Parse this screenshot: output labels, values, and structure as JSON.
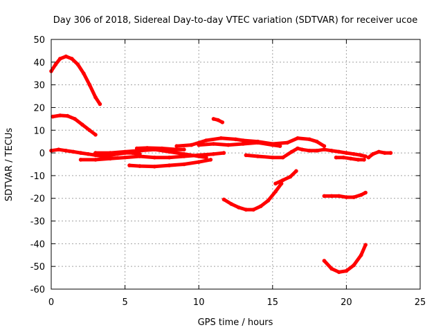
{
  "chart_data": {
    "type": "scatter",
    "title": "Day 306 of 2018, Sidereal Day-to-day VTEC variation (SDTVAR) for receiver ucoe",
    "xlabel": "GPS time / hours",
    "ylabel": "SDTVAR / TECUs",
    "xlim": [
      0,
      25
    ],
    "ylim": [
      -60,
      50
    ],
    "xticks": [
      0,
      5,
      10,
      15,
      20,
      25
    ],
    "yticks": [
      -60,
      -50,
      -40,
      -30,
      -20,
      -10,
      0,
      10,
      20,
      30,
      40,
      50
    ],
    "grid": true,
    "color": "#ff0000",
    "series": [
      {
        "name": "arc-1",
        "points": [
          [
            0.0,
            36
          ],
          [
            0.3,
            39
          ],
          [
            0.6,
            41.5
          ],
          [
            1.0,
            42.5
          ],
          [
            1.4,
            41.5
          ],
          [
            1.8,
            39
          ],
          [
            2.2,
            35
          ],
          [
            2.6,
            30
          ],
          [
            3.0,
            24.5
          ],
          [
            3.3,
            21.5
          ]
        ]
      },
      {
        "name": "arc-2",
        "points": [
          [
            0.1,
            16
          ],
          [
            0.6,
            16.5
          ],
          [
            1.1,
            16.3
          ],
          [
            1.6,
            15
          ],
          [
            2.1,
            12.5
          ],
          [
            2.6,
            10
          ],
          [
            3.0,
            8
          ]
        ]
      },
      {
        "name": "arc-3",
        "points": [
          [
            0.0,
            1
          ],
          [
            0.5,
            1.5
          ],
          [
            1.0,
            1
          ],
          [
            1.5,
            0.5
          ],
          [
            2.0,
            0
          ],
          [
            2.5,
            -0.5
          ],
          [
            3.0,
            -1
          ],
          [
            3.5,
            -1.5
          ],
          [
            4.0,
            -1
          ],
          [
            4.5,
            -0.5
          ],
          [
            5.0,
            0
          ],
          [
            5.5,
            0
          ],
          [
            6.0,
            -0.5
          ]
        ]
      },
      {
        "name": "arc-4",
        "points": [
          [
            2.0,
            -3
          ],
          [
            3.0,
            -3
          ],
          [
            4.0,
            -2.5
          ],
          [
            5.0,
            -2
          ],
          [
            6.0,
            -1.5
          ],
          [
            7.0,
            -2
          ],
          [
            8.0,
            -2
          ],
          [
            9.0,
            -1.5
          ],
          [
            10.0,
            -1
          ],
          [
            11.0,
            -0.5
          ],
          [
            11.7,
            0
          ]
        ]
      },
      {
        "name": "arc-5",
        "points": [
          [
            3.0,
            0
          ],
          [
            4.0,
            0
          ],
          [
            5.0,
            0.5
          ],
          [
            6.0,
            1
          ],
          [
            7.0,
            1.5
          ],
          [
            8.0,
            0.5
          ],
          [
            9.0,
            -0.5
          ],
          [
            10.0,
            -1.5
          ],
          [
            10.5,
            -2
          ]
        ]
      },
      {
        "name": "arc-6",
        "points": [
          [
            5.3,
            -5.5
          ],
          [
            6.0,
            -5.8
          ],
          [
            7.0,
            -6
          ],
          [
            8.0,
            -5.5
          ],
          [
            9.0,
            -5
          ],
          [
            10.0,
            -4
          ],
          [
            10.8,
            -3
          ]
        ]
      },
      {
        "name": "arc-7",
        "points": [
          [
            5.8,
            2
          ],
          [
            6.5,
            2.2
          ],
          [
            7.5,
            2
          ],
          [
            8.5,
            1.5
          ],
          [
            9.0,
            1.5
          ]
        ]
      },
      {
        "name": "arc-8",
        "points": [
          [
            8.5,
            3
          ],
          [
            9.5,
            3.5
          ],
          [
            10.5,
            5.5
          ],
          [
            11.5,
            6.5
          ],
          [
            12.5,
            6
          ],
          [
            13.0,
            5.5
          ],
          [
            14.0,
            5
          ],
          [
            15.0,
            4
          ],
          [
            16.0,
            4.5
          ],
          [
            16.7,
            6.5
          ],
          [
            17.5,
            6
          ],
          [
            18.0,
            5
          ],
          [
            18.5,
            3
          ]
        ]
      },
      {
        "name": "arc-9",
        "points": [
          [
            10.0,
            3.5
          ],
          [
            11.0,
            4
          ],
          [
            12.0,
            3.5
          ],
          [
            13.0,
            4
          ],
          [
            14.0,
            4.5
          ],
          [
            15.0,
            3.5
          ],
          [
            15.5,
            3
          ]
        ]
      },
      {
        "name": "arc-10",
        "points": [
          [
            11.0,
            15
          ],
          [
            11.3,
            14.5
          ],
          [
            11.6,
            13.5
          ]
        ]
      },
      {
        "name": "arc-11",
        "points": [
          [
            13.2,
            -1
          ],
          [
            14.0,
            -1.5
          ],
          [
            15.0,
            -2
          ],
          [
            15.7,
            -2
          ],
          [
            16.3,
            0.5
          ],
          [
            16.7,
            2
          ],
          [
            17.0,
            1.5
          ],
          [
            17.5,
            1
          ],
          [
            18.0,
            1
          ],
          [
            18.5,
            1.5
          ],
          [
            19.0,
            1
          ],
          [
            19.5,
            0.5
          ],
          [
            20.0,
            0
          ],
          [
            20.5,
            -0.5
          ],
          [
            21.0,
            -1
          ],
          [
            21.3,
            -1.5
          ]
        ]
      },
      {
        "name": "arc-12",
        "points": [
          [
            19.3,
            -2
          ],
          [
            19.8,
            -2
          ],
          [
            20.3,
            -2.5
          ],
          [
            20.8,
            -3
          ],
          [
            21.2,
            -3
          ]
        ]
      },
      {
        "name": "arc-13",
        "points": [
          [
            21.5,
            -2
          ],
          [
            21.8,
            -0.5
          ],
          [
            22.2,
            0.5
          ],
          [
            22.6,
            0
          ],
          [
            23.0,
            0
          ]
        ]
      },
      {
        "name": "arc-14",
        "points": [
          [
            11.7,
            -20.5
          ],
          [
            12.2,
            -22.5
          ],
          [
            12.7,
            -24
          ],
          [
            13.2,
            -25
          ],
          [
            13.7,
            -25
          ],
          [
            14.2,
            -23.5
          ],
          [
            14.7,
            -21
          ],
          [
            15.2,
            -17
          ],
          [
            15.6,
            -13.5
          ]
        ]
      },
      {
        "name": "arc-15",
        "points": [
          [
            15.2,
            -13.5
          ],
          [
            15.7,
            -12
          ],
          [
            16.2,
            -10.5
          ],
          [
            16.6,
            -8
          ]
        ]
      },
      {
        "name": "arc-16",
        "points": [
          [
            18.5,
            -19
          ],
          [
            19.0,
            -19
          ],
          [
            19.5,
            -19
          ],
          [
            20.0,
            -19.5
          ],
          [
            20.5,
            -19.5
          ],
          [
            21.0,
            -18.5
          ],
          [
            21.3,
            -17.5
          ]
        ]
      },
      {
        "name": "arc-17",
        "points": [
          [
            18.5,
            -47.5
          ],
          [
            19.0,
            -51
          ],
          [
            19.5,
            -52.5
          ],
          [
            20.0,
            -52
          ],
          [
            20.5,
            -49.5
          ],
          [
            21.0,
            -45
          ],
          [
            21.3,
            -40.5
          ]
        ]
      }
    ]
  }
}
